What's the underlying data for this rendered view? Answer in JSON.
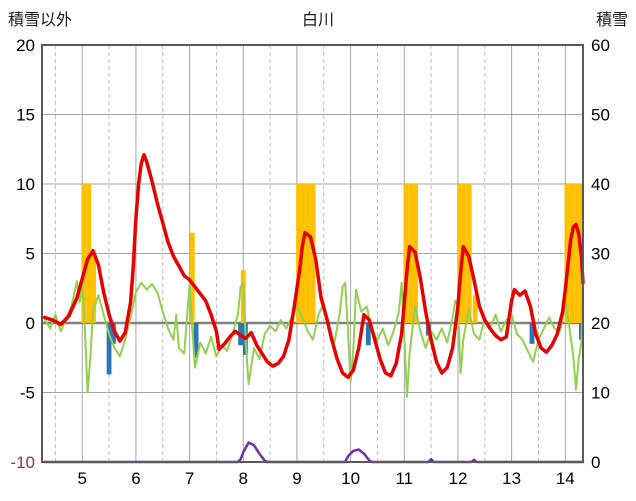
{
  "header": {
    "left_axis_title": "積雪以外",
    "chart_title": "白川",
    "right_axis_title": "積雪"
  },
  "chart_data": {
    "type": "combo",
    "title": "白川",
    "left_axis": {
      "title": "積雪以外",
      "min": -10,
      "max": 20,
      "tick_interval": 5,
      "ticks": [
        20,
        15,
        10,
        5,
        0,
        -5,
        -10
      ],
      "tick_colors": [
        "#000000",
        "#000000",
        "#000000",
        "#000000",
        "#000000",
        "#000000",
        "#953735"
      ]
    },
    "right_axis": {
      "title": "積雪",
      "min": 0,
      "max": 60,
      "tick_interval": 10,
      "ticks": [
        60,
        50,
        40,
        30,
        20,
        10,
        0
      ],
      "tick_color": "#000000"
    },
    "x_axis": {
      "min": 4.25,
      "max": 14.33,
      "major_ticks": [
        5,
        6,
        7,
        8,
        9,
        10,
        11,
        12,
        13,
        14
      ],
      "minor_gridlines": [
        4.5,
        5.5,
        6.5,
        7.5,
        8.5,
        9.5,
        10.5,
        11.5,
        12.5,
        13.5
      ],
      "tick_color": "#000000"
    },
    "grid": {
      "major_color": "#A6A6A6",
      "minor_color": "#BFBFBF",
      "zero_line_color": "#808080",
      "border_color": "#595959",
      "background": "#FFFFFF"
    },
    "series": [
      {
        "name": "orange-bars",
        "type": "bar",
        "axis": "left",
        "color": "#FFC000",
        "bar_width": 0.09,
        "points": [
          [
            5.03,
            10
          ],
          [
            5.12,
            10
          ],
          [
            5.21,
            5
          ],
          [
            7.05,
            6.5
          ],
          [
            8.0,
            3.8
          ],
          [
            9.03,
            10
          ],
          [
            9.12,
            10
          ],
          [
            9.21,
            10
          ],
          [
            9.3,
            10
          ],
          [
            11.03,
            10
          ],
          [
            11.12,
            10
          ],
          [
            11.21,
            10
          ],
          [
            12.03,
            10
          ],
          [
            12.12,
            10
          ],
          [
            12.21,
            10
          ],
          [
            12.32,
            2
          ],
          [
            14.03,
            10
          ],
          [
            14.12,
            10
          ],
          [
            14.21,
            10
          ],
          [
            14.3,
            10
          ]
        ]
      },
      {
        "name": "blue-bars",
        "type": "bar",
        "axis": "left",
        "color": "#2E75B6",
        "bar_width": 0.09,
        "points": [
          [
            5.5,
            -3.7
          ],
          [
            5.58,
            -1.5
          ],
          [
            7.12,
            -2.5
          ],
          [
            7.95,
            -1.6
          ],
          [
            8.04,
            -2.3
          ],
          [
            10.33,
            -1.6
          ],
          [
            11.45,
            -0.9
          ],
          [
            13.38,
            -1.5
          ],
          [
            14.3,
            -1.2
          ]
        ]
      },
      {
        "name": "purple-line",
        "type": "line",
        "axis": "left",
        "color": "#7030A0",
        "width": 2.5,
        "points": [
          [
            4.3,
            -10
          ],
          [
            7.9,
            -10
          ],
          [
            7.95,
            -9.8
          ],
          [
            8.0,
            -9.3
          ],
          [
            8.1,
            -8.6
          ],
          [
            8.2,
            -8.8
          ],
          [
            8.3,
            -9.4
          ],
          [
            8.4,
            -9.9
          ],
          [
            8.45,
            -10
          ],
          [
            9.9,
            -10
          ],
          [
            9.95,
            -9.6
          ],
          [
            10.05,
            -9.2
          ],
          [
            10.15,
            -9.1
          ],
          [
            10.25,
            -9.4
          ],
          [
            10.35,
            -9.9
          ],
          [
            10.4,
            -10
          ],
          [
            11.45,
            -10
          ],
          [
            11.5,
            -9.8
          ],
          [
            11.55,
            -10
          ],
          [
            12.25,
            -10
          ],
          [
            12.3,
            -9.85
          ],
          [
            12.35,
            -10
          ],
          [
            14.33,
            -10
          ]
        ]
      },
      {
        "name": "green-line",
        "type": "line",
        "axis": "left",
        "color": "#92D050",
        "width": 2,
        "points": [
          [
            4.3,
            0.3
          ],
          [
            4.4,
            -0.4
          ],
          [
            4.5,
            0.6
          ],
          [
            4.6,
            -0.6
          ],
          [
            4.7,
            0.4
          ],
          [
            4.8,
            1.2
          ],
          [
            4.9,
            3.0
          ],
          [
            4.95,
            1.5
          ],
          [
            5.0,
            2.8
          ],
          [
            5.05,
            -0.5
          ],
          [
            5.1,
            -5.0
          ],
          [
            5.15,
            -2.5
          ],
          [
            5.2,
            0.8
          ],
          [
            5.3,
            2.0
          ],
          [
            5.4,
            0.6
          ],
          [
            5.5,
            -0.8
          ],
          [
            5.6,
            -1.8
          ],
          [
            5.7,
            -2.4
          ],
          [
            5.8,
            -1.2
          ],
          [
            5.9,
            0.4
          ],
          [
            6.0,
            2.2
          ],
          [
            6.1,
            2.9
          ],
          [
            6.2,
            2.4
          ],
          [
            6.3,
            2.8
          ],
          [
            6.4,
            2.2
          ],
          [
            6.5,
            0.8
          ],
          [
            6.6,
            -0.4
          ],
          [
            6.7,
            -1.2
          ],
          [
            6.75,
            0.6
          ],
          [
            6.8,
            -1.8
          ],
          [
            6.9,
            -2.2
          ],
          [
            7.0,
            2.8
          ],
          [
            7.05,
            -0.5
          ],
          [
            7.1,
            -3.2
          ],
          [
            7.2,
            -1.4
          ],
          [
            7.3,
            -2.2
          ],
          [
            7.4,
            -1.0
          ],
          [
            7.5,
            -2.4
          ],
          [
            7.6,
            -1.6
          ],
          [
            7.7,
            -2.0
          ],
          [
            7.8,
            -0.8
          ],
          [
            7.9,
            0.6
          ],
          [
            7.95,
            2.6
          ],
          [
            8.0,
            2.9
          ],
          [
            8.05,
            -1.5
          ],
          [
            8.1,
            -4.4
          ],
          [
            8.2,
            -1.8
          ],
          [
            8.3,
            -2.6
          ],
          [
            8.4,
            -0.8
          ],
          [
            8.5,
            -0.2
          ],
          [
            8.6,
            -0.6
          ],
          [
            8.7,
            0.2
          ],
          [
            8.8,
            -0.4
          ],
          [
            8.9,
            0.4
          ],
          [
            9.0,
            1.2
          ],
          [
            9.1,
            0.4
          ],
          [
            9.2,
            -0.6
          ],
          [
            9.3,
            -1.2
          ],
          [
            9.4,
            0.6
          ],
          [
            9.5,
            1.4
          ],
          [
            9.6,
            -0.6
          ],
          [
            9.7,
            -1.4
          ],
          [
            9.8,
            0.8
          ],
          [
            9.85,
            2.6
          ],
          [
            9.9,
            2.9
          ],
          [
            9.95,
            -0.5
          ],
          [
            10.0,
            -4.2
          ],
          [
            10.05,
            -2.0
          ],
          [
            10.1,
            2.4
          ],
          [
            10.2,
            0.8
          ],
          [
            10.3,
            1.2
          ],
          [
            10.4,
            -0.6
          ],
          [
            10.5,
            -1.2
          ],
          [
            10.6,
            -0.4
          ],
          [
            10.7,
            -1.6
          ],
          [
            10.8,
            -0.6
          ],
          [
            10.9,
            0.8
          ],
          [
            10.95,
            2.9
          ],
          [
            11.0,
            -1.0
          ],
          [
            11.05,
            -5.3
          ],
          [
            11.1,
            -2.2
          ],
          [
            11.2,
            1.2
          ],
          [
            11.3,
            -0.6
          ],
          [
            11.4,
            -1.8
          ],
          [
            11.5,
            -0.6
          ],
          [
            11.6,
            -1.2
          ],
          [
            11.7,
            -0.4
          ],
          [
            11.8,
            -1.4
          ],
          [
            11.9,
            0.4
          ],
          [
            11.95,
            1.6
          ],
          [
            12.0,
            1.2
          ],
          [
            12.05,
            -3.6
          ],
          [
            12.1,
            -1.2
          ],
          [
            12.2,
            1.0
          ],
          [
            12.3,
            -0.8
          ],
          [
            12.4,
            -1.2
          ],
          [
            12.5,
            0.4
          ],
          [
            12.6,
            -0.4
          ],
          [
            12.7,
            0.6
          ],
          [
            12.8,
            -0.6
          ],
          [
            12.9,
            0.2
          ],
          [
            13.0,
            0.6
          ],
          [
            13.1,
            -0.8
          ],
          [
            13.2,
            -1.2
          ],
          [
            13.3,
            -2.0
          ],
          [
            13.4,
            -2.8
          ],
          [
            13.5,
            -1.2
          ],
          [
            13.6,
            -0.4
          ],
          [
            13.7,
            0.4
          ],
          [
            13.8,
            -0.4
          ],
          [
            13.9,
            -0.6
          ],
          [
            14.0,
            1.4
          ],
          [
            14.05,
            0.4
          ],
          [
            14.1,
            -1.0
          ],
          [
            14.15,
            -2.4
          ],
          [
            14.2,
            -4.8
          ],
          [
            14.25,
            -2.6
          ],
          [
            14.3,
            -1.4
          ],
          [
            14.33,
            2.4
          ]
        ]
      },
      {
        "name": "red-line",
        "type": "line",
        "axis": "left",
        "color": "#E60000",
        "width": 3.5,
        "points": [
          [
            4.3,
            0.4
          ],
          [
            4.45,
            0.2
          ],
          [
            4.6,
            -0.1
          ],
          [
            4.75,
            0.5
          ],
          [
            4.9,
            1.8
          ],
          [
            5.0,
            3.2
          ],
          [
            5.1,
            4.6
          ],
          [
            5.2,
            5.2
          ],
          [
            5.3,
            4.2
          ],
          [
            5.4,
            2.2
          ],
          [
            5.5,
            0.6
          ],
          [
            5.6,
            -0.6
          ],
          [
            5.7,
            -1.3
          ],
          [
            5.8,
            -0.7
          ],
          [
            5.9,
            1.5
          ],
          [
            5.95,
            4.0
          ],
          [
            6.0,
            7.5
          ],
          [
            6.05,
            10.0
          ],
          [
            6.1,
            11.5
          ],
          [
            6.15,
            12.1
          ],
          [
            6.2,
            11.6
          ],
          [
            6.3,
            10.2
          ],
          [
            6.4,
            8.6
          ],
          [
            6.5,
            7.2
          ],
          [
            6.6,
            5.8
          ],
          [
            6.7,
            4.8
          ],
          [
            6.8,
            4.1
          ],
          [
            6.9,
            3.4
          ],
          [
            7.0,
            3.1
          ],
          [
            7.1,
            2.6
          ],
          [
            7.2,
            2.1
          ],
          [
            7.3,
            1.6
          ],
          [
            7.4,
            0.6
          ],
          [
            7.5,
            -0.6
          ],
          [
            7.55,
            -1.9
          ],
          [
            7.65,
            -1.5
          ],
          [
            7.75,
            -1.0
          ],
          [
            7.85,
            -0.6
          ],
          [
            7.95,
            -0.9
          ],
          [
            8.05,
            -1.1
          ],
          [
            8.15,
            -0.7
          ],
          [
            8.25,
            -1.6
          ],
          [
            8.35,
            -2.2
          ],
          [
            8.45,
            -2.8
          ],
          [
            8.55,
            -3.1
          ],
          [
            8.65,
            -2.9
          ],
          [
            8.75,
            -2.4
          ],
          [
            8.85,
            -1.2
          ],
          [
            8.95,
            1.2
          ],
          [
            9.05,
            3.8
          ],
          [
            9.1,
            5.5
          ],
          [
            9.15,
            6.5
          ],
          [
            9.25,
            6.2
          ],
          [
            9.35,
            4.6
          ],
          [
            9.45,
            1.8
          ],
          [
            9.55,
            0.4
          ],
          [
            9.65,
            -1.2
          ],
          [
            9.75,
            -2.6
          ],
          [
            9.85,
            -3.6
          ],
          [
            9.95,
            -3.9
          ],
          [
            10.05,
            -3.4
          ],
          [
            10.15,
            -1.8
          ],
          [
            10.25,
            0.6
          ],
          [
            10.35,
            0.2
          ],
          [
            10.45,
            -1.2
          ],
          [
            10.55,
            -2.6
          ],
          [
            10.65,
            -3.6
          ],
          [
            10.75,
            -3.8
          ],
          [
            10.85,
            -2.9
          ],
          [
            10.95,
            -0.8
          ],
          [
            11.0,
            1.5
          ],
          [
            11.05,
            3.8
          ],
          [
            11.1,
            5.5
          ],
          [
            11.2,
            5.1
          ],
          [
            11.3,
            3.2
          ],
          [
            11.4,
            0.8
          ],
          [
            11.5,
            -1.2
          ],
          [
            11.6,
            -2.8
          ],
          [
            11.7,
            -3.6
          ],
          [
            11.8,
            -3.2
          ],
          [
            11.9,
            -1.8
          ],
          [
            12.0,
            1.2
          ],
          [
            12.05,
            3.6
          ],
          [
            12.1,
            5.5
          ],
          [
            12.2,
            4.8
          ],
          [
            12.3,
            3.1
          ],
          [
            12.4,
            1.2
          ],
          [
            12.5,
            0.2
          ],
          [
            12.6,
            -0.4
          ],
          [
            12.7,
            -0.9
          ],
          [
            12.8,
            -1.2
          ],
          [
            12.9,
            -1.0
          ],
          [
            13.0,
            1.6
          ],
          [
            13.05,
            2.4
          ],
          [
            13.15,
            2.0
          ],
          [
            13.25,
            2.3
          ],
          [
            13.35,
            1.2
          ],
          [
            13.45,
            -0.8
          ],
          [
            13.55,
            -1.8
          ],
          [
            13.65,
            -2.1
          ],
          [
            13.75,
            -1.6
          ],
          [
            13.85,
            -0.8
          ],
          [
            13.95,
            0.8
          ],
          [
            14.0,
            2.4
          ],
          [
            14.05,
            4.2
          ],
          [
            14.1,
            6.0
          ],
          [
            14.15,
            6.9
          ],
          [
            14.2,
            7.1
          ],
          [
            14.25,
            6.4
          ],
          [
            14.3,
            4.8
          ],
          [
            14.33,
            2.9
          ]
        ]
      }
    ]
  }
}
